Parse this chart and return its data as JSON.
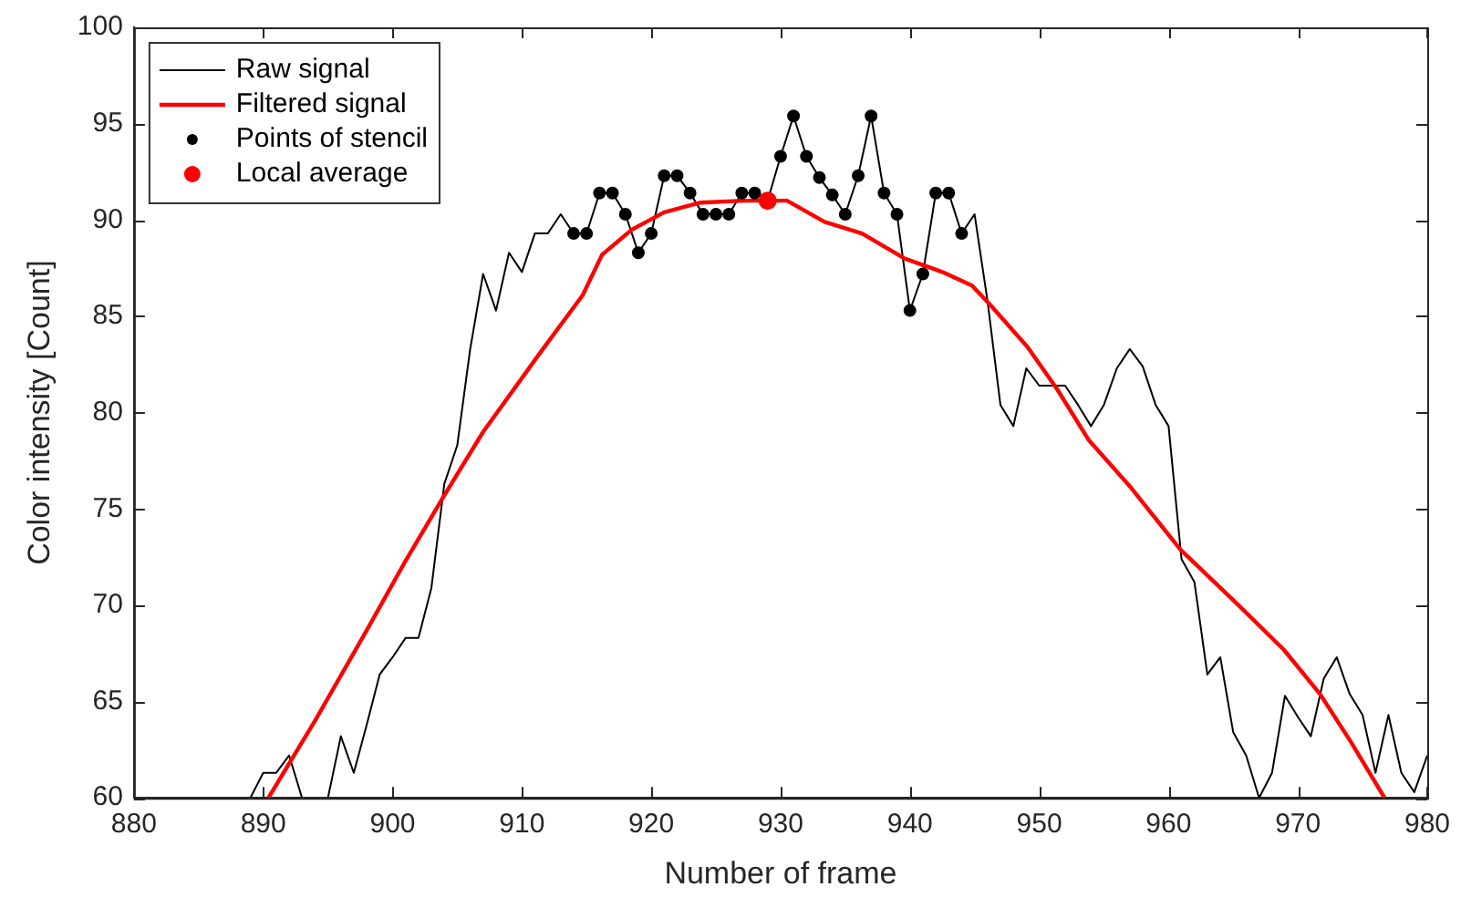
{
  "chart_data": {
    "type": "line",
    "xlabel": "Number of frame",
    "ylabel": "Color intensity [Count]",
    "xlim": [
      880,
      980
    ],
    "xticks": [
      880,
      890,
      900,
      910,
      920,
      930,
      940,
      950,
      960,
      970,
      980
    ],
    "ylim": [
      60,
      100
    ],
    "yticks": [
      60,
      65,
      70,
      75,
      80,
      85,
      90,
      95,
      100
    ],
    "grid": false,
    "legend": "top left",
    "series": [
      {
        "name": "Raw signal",
        "color": "#000000",
        "marker": "none",
        "line_style": "solid",
        "x": [
          889,
          890,
          891,
          892,
          893,
          894,
          895,
          896,
          897,
          898,
          899,
          900,
          901,
          902,
          903,
          904,
          905,
          906,
          907,
          908,
          909,
          910,
          911,
          912,
          913,
          914,
          915,
          916,
          917,
          918,
          919,
          920,
          921,
          922,
          923,
          924,
          925,
          926,
          927,
          928,
          929,
          930,
          931,
          932,
          933,
          934,
          935,
          936,
          937,
          938,
          939,
          940,
          941,
          942,
          943,
          944,
          945,
          946,
          947,
          948,
          949,
          950,
          951,
          952,
          953,
          954,
          955,
          956,
          957,
          958,
          959,
          960,
          961,
          962,
          963,
          964,
          965,
          966,
          967,
          968,
          969,
          970,
          971,
          972,
          973,
          974,
          975,
          976,
          977,
          978,
          979,
          980
        ],
        "values": [
          60.0,
          61.3,
          61.3,
          62.2,
          60.0,
          null,
          60.0,
          63.2,
          61.3,
          63.8,
          66.4,
          67.3,
          68.3,
          68.3,
          70.9,
          76.3,
          78.3,
          83.3,
          87.2,
          85.3,
          88.3,
          87.3,
          89.3,
          89.3,
          90.3,
          89.3,
          89.3,
          91.4,
          91.4,
          90.3,
          88.3,
          89.3,
          92.3,
          92.3,
          91.4,
          90.3,
          90.3,
          90.3,
          91.4,
          91.4,
          91.0,
          93.3,
          95.4,
          93.3,
          92.2,
          91.3,
          90.3,
          92.3,
          95.4,
          91.4,
          90.3,
          85.3,
          87.2,
          91.4,
          91.4,
          89.3,
          90.3,
          85.8,
          80.4,
          79.3,
          82.3,
          81.4,
          81.4,
          81.4,
          80.4,
          79.3,
          80.4,
          82.3,
          83.3,
          82.4,
          80.4,
          79.3,
          72.4,
          71.2,
          66.4,
          67.3,
          63.4,
          62.2,
          60.0,
          61.3,
          65.3,
          64.2,
          63.2,
          66.2,
          67.3,
          65.4,
          64.3,
          61.3,
          64.3,
          61.3,
          60.3,
          62.2
        ]
      },
      {
        "name": "Filtered signal",
        "color": "#ff0000",
        "marker": "none",
        "line_style": "solid",
        "x": [
          890.4,
          894,
          898,
          901,
          903.9,
          907,
          911.4,
          914.7,
          916.2,
          918.5,
          921,
          923.8,
          927.2,
          929,
          930.5,
          933.4,
          936.3,
          939.6,
          942.5,
          944.8,
          946.2,
          949.1,
          951.4,
          953.8,
          957.1,
          960.9,
          965.1,
          968.9,
          971.7,
          974.1,
          976.7
        ],
        "values": [
          60.0,
          64.0,
          68.7,
          72.3,
          75.6,
          79.0,
          83.1,
          86.1,
          88.2,
          89.5,
          90.4,
          90.9,
          91.0,
          91.0,
          91.0,
          89.9,
          89.3,
          88.0,
          87.3,
          86.6,
          85.6,
          83.4,
          81.2,
          78.6,
          76.1,
          72.9,
          70.2,
          67.7,
          65.4,
          62.9,
          60.0
        ]
      },
      {
        "name": "Points of stencil",
        "type": "scatter",
        "color": "#000000",
        "marker": "circle",
        "x": [
          914,
          915,
          916,
          917,
          918,
          919,
          920,
          921,
          922,
          923,
          924,
          925,
          926,
          927,
          928,
          929,
          930,
          931,
          932,
          933,
          934,
          935,
          936,
          937,
          938,
          939,
          940,
          941,
          942,
          943,
          944
        ],
        "values": [
          89.3,
          89.3,
          91.4,
          91.4,
          90.3,
          88.3,
          89.3,
          92.3,
          92.3,
          91.4,
          90.3,
          90.3,
          90.3,
          91.4,
          91.4,
          null,
          93.3,
          95.4,
          93.3,
          92.2,
          91.3,
          90.3,
          92.3,
          95.4,
          91.4,
          90.3,
          85.3,
          87.2,
          91.4,
          91.4,
          89.3
        ]
      },
      {
        "name": "Local average",
        "type": "scatter",
        "color": "#ff0000",
        "marker": "circle",
        "x": [
          929
        ],
        "values": [
          91.0
        ]
      }
    ]
  }
}
